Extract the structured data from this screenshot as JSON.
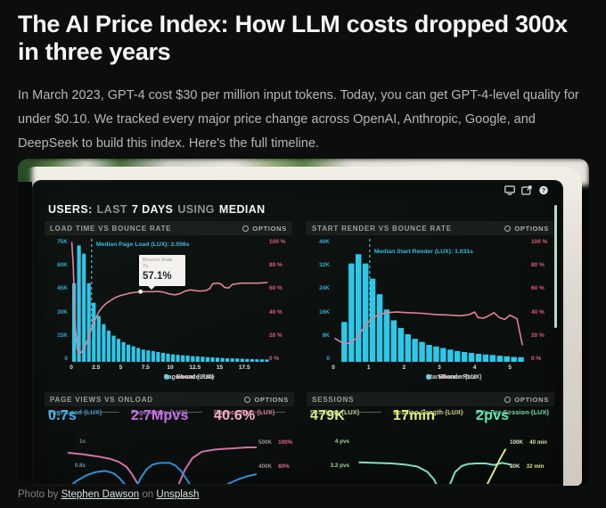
{
  "article": {
    "title": "The AI Price Index: How LLM costs dropped 300x in three years",
    "intro": "In March 2023, GPT-4 cost $30 per million input tokens. Today, you can get GPT-4-level quality for under $0.10. We tracked every major price change across OpenAI, Anthropic, Google, and DeepSeek to build this index. Here's the full timeline.",
    "credit": {
      "prefix": "Photo by",
      "author": "Stephen Dawson",
      "middle": "on",
      "source": "Unsplash"
    }
  },
  "dashboard": {
    "toolbar": {
      "segments": [
        {
          "text": "USERS:",
          "emph": true
        },
        {
          "text": "LAST",
          "emph": false
        },
        {
          "text": "7 DAYS",
          "emph": true
        },
        {
          "text": "USING",
          "emph": false
        },
        {
          "text": "MEDIAN",
          "emph": true
        }
      ],
      "icons": [
        "display-icon",
        "share-icon",
        "help-icon"
      ]
    },
    "options_label": "OPTIONS",
    "colors": {
      "bar_cyan": "#2dc7e8",
      "line_pink": "#e28296",
      "accent_mint": "#b7dcc8"
    }
  },
  "chart_data": [
    {
      "type": "bar",
      "title": "LOAD TIME VS BOUNCE RATE",
      "xlabel": "Page Load (s)",
      "xlim": [
        0,
        20
      ],
      "xticks": [
        "0",
        "2.5",
        "5",
        "7.5",
        "10",
        "12.5",
        "15",
        "17.5"
      ],
      "ylim_left": [
        0,
        75
      ],
      "yticks_left": [
        "75K",
        "60K",
        "45K",
        "30K",
        "15K",
        "0"
      ],
      "ylim_right": [
        0,
        100
      ],
      "yticks_right": [
        "100 %",
        "80 %",
        "60 %",
        "40 %",
        "20 %",
        "0 %"
      ],
      "bar_color": "#2dc7e8",
      "line_color": "#e28296",
      "bin_start": 0.05,
      "bin_width": 0.5,
      "bars": [
        48,
        71,
        66,
        48,
        36,
        28,
        23,
        19,
        16,
        14,
        12,
        10.5,
        9.5,
        8.5,
        7.5,
        7,
        6.5,
        6,
        5.5,
        5,
        4.6,
        4.3,
        4,
        3.8,
        3.5,
        3.3,
        3.1,
        2.9,
        2.7,
        2.5,
        2.4,
        2.2,
        2.1,
        2,
        1.9,
        1.8,
        1.7,
        1.6,
        1.5,
        1.4
      ],
      "line": [
        [
          0.05,
          97
        ],
        [
          0.2,
          78
        ],
        [
          0.4,
          30
        ],
        [
          0.6,
          10
        ],
        [
          0.8,
          7
        ],
        [
          1.0,
          7.5
        ],
        [
          1.3,
          11
        ],
        [
          1.6,
          17
        ],
        [
          2.0,
          26
        ],
        [
          2.4,
          34
        ],
        [
          2.8,
          41
        ],
        [
          3.2,
          45
        ],
        [
          3.6,
          48
        ],
        [
          4.0,
          50
        ],
        [
          4.5,
          52.5
        ],
        [
          5.0,
          54
        ],
        [
          5.5,
          55
        ],
        [
          6.0,
          56
        ],
        [
          6.5,
          56.5
        ],
        [
          7.0,
          57.1
        ],
        [
          7.6,
          57
        ],
        [
          8.2,
          57
        ],
        [
          8.8,
          57.3
        ],
        [
          9.4,
          56.5
        ],
        [
          10.0,
          55
        ],
        [
          10.5,
          54.5
        ],
        [
          11.0,
          55.5
        ],
        [
          11.5,
          57.5
        ],
        [
          12.0,
          58.5
        ],
        [
          12.5,
          58
        ],
        [
          13.0,
          57.5
        ],
        [
          13.6,
          58
        ],
        [
          14.0,
          59.5
        ],
        [
          14.3,
          63.5
        ],
        [
          14.7,
          64
        ],
        [
          15.1,
          63.5
        ],
        [
          15.5,
          60.5
        ],
        [
          15.9,
          60
        ],
        [
          16.3,
          63
        ],
        [
          16.7,
          63.5
        ],
        [
          17.2,
          64
        ],
        [
          18.0,
          64
        ],
        [
          19.0,
          64
        ],
        [
          19.8,
          64.5
        ]
      ],
      "median": {
        "x": 2.056,
        "label": "Median Page Load (LUX): 2.056s"
      },
      "tooltip": {
        "title": "Bounce Rate",
        "sub": "7s",
        "value": "57.1%",
        "x": 7,
        "y": 57.1
      },
      "legend": [
        {
          "marker": "dot",
          "color": "#2dc7e8",
          "label": "Page Load (LUX)"
        },
        {
          "marker": "line",
          "color": "#e28296",
          "label": "Bounce Rate"
        }
      ]
    },
    {
      "type": "bar",
      "title": "START RENDER VS BOUNCE RATE",
      "xlabel": "Start Render (s)",
      "xlim": [
        0,
        5.6
      ],
      "xticks": [
        "0",
        "1",
        "2",
        "3",
        "4",
        "5"
      ],
      "ylim_left": [
        0,
        40
      ],
      "yticks_left": [
        "40K",
        "32K",
        "24K",
        "16K",
        "8K",
        "0"
      ],
      "ylim_right": [
        0,
        100
      ],
      "yticks_right": [
        "100 %",
        "80 %",
        "60 %",
        "40 %",
        "20 %",
        "0 %"
      ],
      "bar_color": "#2dc7e8",
      "line_color": "#e28296",
      "bin_start": 0.22,
      "bin_width": 0.2,
      "bars": [
        13,
        32,
        35,
        32,
        27,
        22,
        17,
        13.5,
        11,
        9,
        7.5,
        6.5,
        5.5,
        5,
        4.5,
        4,
        3.5,
        3.2,
        2.9,
        2.6,
        2.4,
        2.2,
        2,
        1.8,
        1.6,
        1.5
      ],
      "line": [
        [
          0.05,
          19
        ],
        [
          0.25,
          15.5
        ],
        [
          0.45,
          15
        ],
        [
          0.65,
          19
        ],
        [
          0.85,
          27
        ],
        [
          1.05,
          34
        ],
        [
          1.25,
          38
        ],
        [
          1.5,
          40
        ],
        [
          1.8,
          40.5
        ],
        [
          2.1,
          40
        ],
        [
          2.5,
          39.5
        ],
        [
          2.9,
          38.5
        ],
        [
          3.3,
          38
        ],
        [
          3.6,
          37.5
        ],
        [
          3.85,
          38.5
        ],
        [
          4.0,
          40.5
        ],
        [
          4.1,
          36
        ],
        [
          4.25,
          35.5
        ],
        [
          4.4,
          37.5
        ],
        [
          4.55,
          40
        ],
        [
          4.7,
          36
        ],
        [
          4.85,
          34.5
        ],
        [
          5.0,
          38
        ],
        [
          5.1,
          36.5
        ],
        [
          5.2,
          35
        ],
        [
          5.35,
          14
        ]
      ],
      "median": {
        "x": 1.031,
        "label": "Median Start Render (LUX): 1.031s"
      },
      "legend": [
        {
          "marker": "dot",
          "color": "#2dc7e8",
          "label": "Start Render (LUX)"
        },
        {
          "marker": "line",
          "color": "#e28296",
          "label": "Bounce Rate"
        }
      ]
    },
    {
      "type": "line",
      "title": "PAGE VIEWS VS ONLOAD",
      "metrics": [
        {
          "label": "Page Load (LUX)",
          "value": "0.7s",
          "label_color": "#3fa2e0",
          "value_color": "#49b4f0"
        },
        {
          "label": "Page Views (LUX)",
          "value": "2.7Mpvs",
          "label_color": "#a868c8",
          "value_color": "#c573e6"
        },
        {
          "label": "Bounce Rate (LUX)",
          "value": "40.6%",
          "label_color": "#e87ca6",
          "value_color": "#f2b0c8"
        }
      ],
      "axis_left": [
        "1s",
        "0.8s"
      ],
      "axis_right": [
        [
          "500K",
          "100%"
        ],
        [
          "400K",
          "80%"
        ]
      ],
      "series": [
        {
          "name": "Bounce Rate",
          "color": "#d171a4",
          "points": [
            [
              0,
              30
            ],
            [
              8,
              33
            ],
            [
              16,
              37
            ],
            [
              22,
              41
            ],
            [
              27,
              47
            ],
            [
              31,
              56
            ],
            [
              34,
              70
            ],
            [
              37,
              88
            ],
            [
              41,
              110
            ],
            [
              48,
              122
            ],
            [
              54,
              115
            ],
            [
              58,
              95
            ],
            [
              62,
              62
            ],
            [
              66,
              40
            ],
            [
              71,
              28
            ],
            [
              78,
              24
            ],
            [
              86,
              22
            ],
            [
              95,
              20
            ],
            [
              100,
              20
            ]
          ]
        },
        {
          "name": "Page Load",
          "color": "#2f8fd8",
          "points": [
            [
              0,
              96
            ],
            [
              5,
              82
            ],
            [
              10,
              72
            ],
            [
              15,
              66
            ],
            [
              20,
              64
            ],
            [
              24,
              68
            ],
            [
              27,
              76
            ],
            [
              30,
              88
            ],
            [
              33,
              102
            ],
            [
              36,
              96
            ],
            [
              39,
              75
            ],
            [
              42,
              60
            ],
            [
              45,
              52
            ],
            [
              49,
              49
            ],
            [
              54,
              49
            ],
            [
              57,
              54
            ],
            [
              60,
              64
            ],
            [
              63,
              80
            ],
            [
              66,
              96
            ],
            [
              69,
              110
            ],
            [
              73,
              116
            ],
            [
              77,
              108
            ],
            [
              81,
              96
            ],
            [
              85,
              88
            ],
            [
              90,
              80
            ],
            [
              95,
              74
            ],
            [
              100,
              70
            ]
          ]
        }
      ]
    },
    {
      "type": "line",
      "title": "SESSIONS",
      "metrics": [
        {
          "label": "Sessions (LUX)",
          "value": "479K",
          "label_color": "#ccdf8e",
          "value_color": "#d6ea85"
        },
        {
          "label": "Session Length (LUX)",
          "value": "17min",
          "label_color": "#d6e27f",
          "value_color": "#e4f07f"
        },
        {
          "label": "PVs Per Session (LUX)",
          "value": "2pvs",
          "label_color": "#6fe3b2",
          "value_color": "#5feab4"
        }
      ],
      "axis_left": [
        "4 pvs",
        "3.2 pvs"
      ],
      "axis_right": [
        [
          "100K",
          "40 min"
        ],
        [
          "80K",
          "32 min"
        ]
      ],
      "series": [
        {
          "name": "PVs Per Session",
          "color": "#7fe0c3",
          "points": [
            [
              4,
              48
            ],
            [
              14,
              49
            ],
            [
              24,
              50
            ],
            [
              32,
              52
            ],
            [
              40,
              56
            ],
            [
              46,
              66
            ],
            [
              50,
              80
            ],
            [
              53,
              98
            ],
            [
              55,
              115
            ]
          ]
        },
        {
          "name": "Sessions",
          "color": "#7fe0c3",
          "points": [
            [
              57,
              118
            ],
            [
              60,
              88
            ],
            [
              63,
              66
            ],
            [
              67,
              55
            ],
            [
              71,
              51
            ],
            [
              76,
              50
            ],
            [
              82,
              50
            ],
            [
              87,
              53
            ],
            [
              92,
              49
            ],
            [
              97,
              52
            ]
          ]
        },
        {
          "name": "Session Length",
          "color": "#d8e87a",
          "points": [
            [
              79,
              112
            ],
            [
              83,
              88
            ],
            [
              87,
              64
            ],
            [
              91,
              40
            ],
            [
              94,
              24
            ]
          ]
        }
      ]
    }
  ]
}
